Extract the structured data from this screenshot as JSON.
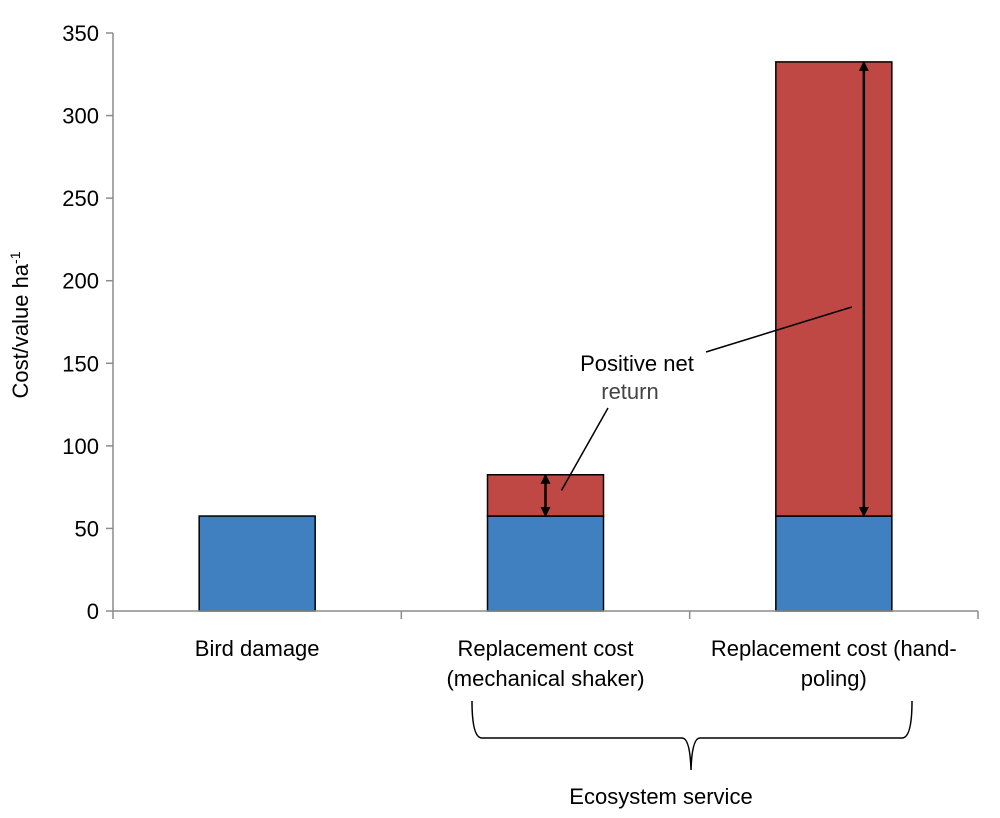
{
  "chart_data": {
    "type": "bar",
    "stacked": true,
    "categories": [
      [
        "Bird damage"
      ],
      [
        "Replacement cost",
        "(mechanical shaker)"
      ],
      [
        "Replacement cost (hand-",
        "poling)"
      ]
    ],
    "series": [
      {
        "values": [
          57.5,
          57.5,
          57.5
        ],
        "color": "#4080c0"
      },
      {
        "values": [
          0,
          25,
          275
        ],
        "color": "#c04844"
      }
    ],
    "ylabel": "Cost/value ha",
    "ylabel_superscript": "-1",
    "ylim": [
      0,
      350
    ],
    "yticks": [
      0,
      50,
      100,
      150,
      200,
      250,
      300,
      350
    ],
    "grid": false,
    "annotation": {
      "line1": "Positive net",
      "line2": "return"
    },
    "group_label": "Ecosystem service"
  }
}
